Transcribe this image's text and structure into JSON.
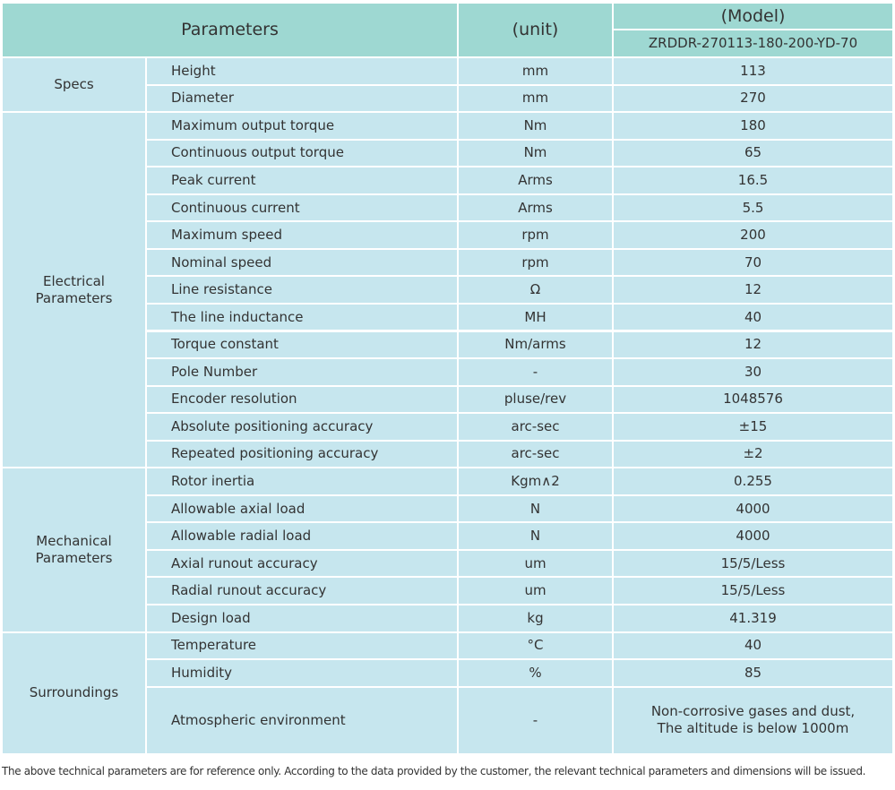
{
  "header": {
    "parameters": "Parameters",
    "unit": "(unit)",
    "model": "(Model)",
    "model_name": "ZRDDR-270113-180-200-YD-70"
  },
  "groups": [
    {
      "name": "Specs",
      "rows": [
        [
          "Height",
          "mm",
          "113"
        ],
        [
          "Diameter",
          "mm",
          "270"
        ]
      ]
    },
    {
      "name": "Electrical Parameters",
      "rows": [
        [
          "Maximum output torque",
          "Nm",
          "180"
        ],
        [
          "Continuous output torque",
          "Nm",
          "65"
        ],
        [
          "Peak current",
          "Arms",
          "16.5"
        ],
        [
          "Continuous current",
          "Arms",
          "5.5"
        ],
        [
          "Maximum speed",
          "rpm",
          "200"
        ],
        [
          "Nominal speed",
          "rpm",
          "70"
        ],
        [
          "Line resistance",
          "Ω",
          "12"
        ],
        [
          "The line inductance",
          "MH",
          "40"
        ],
        [
          "Torque constant",
          "Nm/arms",
          "12"
        ],
        [
          "Pole Number",
          "-",
          "30"
        ],
        [
          "Encoder resolution",
          "pluse/rev",
          "1048576"
        ],
        [
          "Absolute positioning accuracy",
          "arc-sec",
          "±15"
        ],
        [
          "Repeated positioning accuracy",
          "arc-sec",
          "±2"
        ]
      ]
    },
    {
      "name": "Mechanical Parameters",
      "rows": [
        [
          "Rotor inertia",
          "Kgm∧2",
          "0.255"
        ],
        [
          "Allowable axial load",
          "N",
          "4000"
        ],
        [
          "Allowable radial load",
          "N",
          "4000"
        ],
        [
          "Axial runout accuracy",
          "um",
          "15/5/Less"
        ],
        [
          "Radial runout accuracy",
          "um",
          "15/5/Less"
        ],
        [
          "Design load",
          "kg",
          "41.319"
        ]
      ]
    },
    {
      "name": "Surroundings",
      "rows": [
        [
          "Temperature",
          "°C",
          "40"
        ],
        [
          "Humidity",
          "%",
          "85"
        ],
        [
          "Atmospheric environment",
          "-",
          "Non-corrosive gases and dust,\nThe altitude is below 1000m"
        ]
      ]
    }
  ],
  "footnote": "The above technical parameters are for reference only. According to the data provided by the customer, the relevant technical parameters and dimensions will be issued."
}
